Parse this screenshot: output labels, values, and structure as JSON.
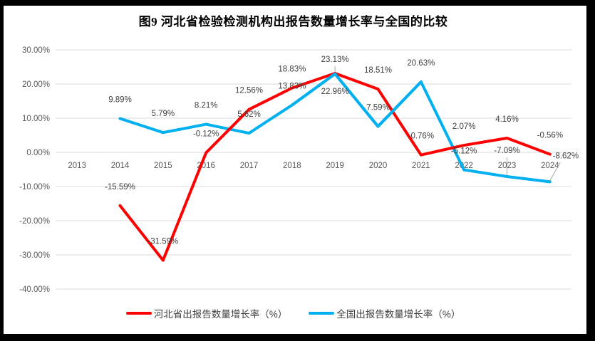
{
  "title": "图9 河北省检验检测机构出报告数量增长率与全国的比较",
  "legend": {
    "items": [
      {
        "label": "河北省出报告数量增长率（%）",
        "color": "#FF0000"
      },
      {
        "label": "全国出报告数量增长率（%）",
        "color": "#00B0F0"
      }
    ]
  },
  "chart_data": {
    "type": "line",
    "title": "图9 河北省检验检测机构出报告数量增长率与全国的比较",
    "categories": [
      "2013",
      "2014",
      "2015",
      "2016",
      "2017",
      "2018",
      "2019",
      "2020",
      "2021",
      "2022",
      "2023",
      "2024"
    ],
    "series": [
      {
        "name": "河北省出报告数量增长率（%）",
        "color": "#FF0000",
        "values": [
          null,
          -15.59,
          -31.59,
          -0.12,
          12.56,
          18.83,
          23.13,
          18.51,
          -0.76,
          2.07,
          4.16,
          -0.56
        ],
        "labels": [
          null,
          "-15.59%",
          "-31.59%",
          "-0.12%",
          "12.56%",
          "18.83%",
          "23.13%",
          "18.51%",
          "-0.76%",
          "2.07%",
          "4.16%",
          "-0.56%"
        ],
        "label_overrides": {
          "6": {
            "dy": -20,
            "leader": true
          }
        }
      },
      {
        "name": "全国出报告数量增长率（%）",
        "color": "#00B0F0",
        "values": [
          null,
          9.89,
          5.79,
          8.21,
          5.62,
          13.83,
          22.96,
          7.59,
          20.63,
          -5.12,
          -7.09,
          -8.62
        ],
        "labels": [
          null,
          "9.89%",
          "5.79%",
          "8.21%",
          "5.62%",
          "13.83%",
          "22.96%",
          "7.59%",
          "20.63%",
          "-5.12%",
          "-7.09%",
          "-8.62%"
        ],
        "label_overrides": {
          "6": {
            "dy": 24
          },
          "10": {
            "dy": -37,
            "leader": true
          },
          "11": {
            "dx": 22,
            "dy": -37,
            "leader": true
          }
        }
      }
    ],
    "ylim": [
      -40,
      30
    ],
    "ytick_step": 10,
    "yticks": [
      "30.00%",
      "20.00%",
      "10.00%",
      "0.00%",
      "-10.00%",
      "-20.00%",
      "-30.00%",
      "-40.00%"
    ],
    "grid": true,
    "legend_position": "bottom"
  },
  "colors": {
    "background": "#FFFFFF",
    "frame": "#000000",
    "grid": "#D9D9D9",
    "axis_text": "#595959",
    "label_text": "#404040",
    "leader": "#A6A6A6"
  }
}
